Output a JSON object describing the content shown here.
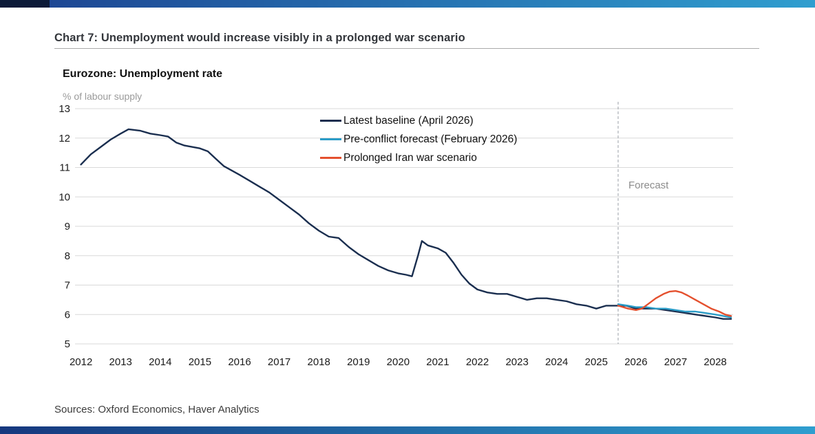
{
  "page": {
    "title": "Chart 7: Unemployment would increase visibly in a prolonged war scenario",
    "sources": "Sources: Oxford Economics, Haver Analytics"
  },
  "colors": {
    "baseline": "#1a2e4f",
    "preconflict": "#2b9cc7",
    "war_scenario": "#e4502e",
    "gridline": "#d9d9d9",
    "divider": "#9aa0a6",
    "accent_bar_dark": "#0c1a38",
    "accent_bar_start": "#1d4794",
    "accent_bar_end": "#2f9ecf"
  },
  "chart_data": {
    "type": "line",
    "title": "Eurozone: Unemployment rate",
    "ylabel": "% of labour supply",
    "xlabel": "",
    "ylim": [
      5,
      13
    ],
    "yticks": [
      5,
      6,
      7,
      8,
      9,
      10,
      11,
      12,
      13
    ],
    "xticks": [
      2012,
      2013,
      2014,
      2015,
      2016,
      2017,
      2018,
      2019,
      2020,
      2021,
      2022,
      2023,
      2024,
      2025,
      2026,
      2027,
      2028
    ],
    "xlim": [
      2011.85,
      2028.45
    ],
    "grid": "horizontal",
    "legend_position": "inside-top-center",
    "forecast_divider_x": 2025.55,
    "forecast_label": "Forecast",
    "series": [
      {
        "name": "Latest baseline (April 2026)",
        "color": "#1a2e4f",
        "points": [
          [
            2012.0,
            11.1
          ],
          [
            2012.25,
            11.45
          ],
          [
            2012.5,
            11.7
          ],
          [
            2012.75,
            11.95
          ],
          [
            2013.0,
            12.15
          ],
          [
            2013.2,
            12.3
          ],
          [
            2013.5,
            12.25
          ],
          [
            2013.75,
            12.15
          ],
          [
            2014.0,
            12.1
          ],
          [
            2014.2,
            12.05
          ],
          [
            2014.4,
            11.85
          ],
          [
            2014.6,
            11.75
          ],
          [
            2014.8,
            11.7
          ],
          [
            2015.0,
            11.65
          ],
          [
            2015.2,
            11.55
          ],
          [
            2015.4,
            11.3
          ],
          [
            2015.6,
            11.05
          ],
          [
            2015.8,
            10.9
          ],
          [
            2016.0,
            10.75
          ],
          [
            2016.25,
            10.55
          ],
          [
            2016.5,
            10.35
          ],
          [
            2016.75,
            10.15
          ],
          [
            2017.0,
            9.9
          ],
          [
            2017.25,
            9.65
          ],
          [
            2017.5,
            9.4
          ],
          [
            2017.75,
            9.1
          ],
          [
            2018.0,
            8.85
          ],
          [
            2018.25,
            8.65
          ],
          [
            2018.5,
            8.6
          ],
          [
            2018.75,
            8.3
          ],
          [
            2019.0,
            8.05
          ],
          [
            2019.25,
            7.85
          ],
          [
            2019.5,
            7.65
          ],
          [
            2019.75,
            7.5
          ],
          [
            2020.0,
            7.4
          ],
          [
            2020.2,
            7.35
          ],
          [
            2020.35,
            7.3
          ],
          [
            2020.5,
            8.0
          ],
          [
            2020.6,
            8.5
          ],
          [
            2020.75,
            8.35
          ],
          [
            2021.0,
            8.25
          ],
          [
            2021.2,
            8.1
          ],
          [
            2021.4,
            7.75
          ],
          [
            2021.6,
            7.35
          ],
          [
            2021.8,
            7.05
          ],
          [
            2022.0,
            6.85
          ],
          [
            2022.25,
            6.75
          ],
          [
            2022.5,
            6.7
          ],
          [
            2022.75,
            6.7
          ],
          [
            2023.0,
            6.6
          ],
          [
            2023.25,
            6.5
          ],
          [
            2023.5,
            6.55
          ],
          [
            2023.75,
            6.55
          ],
          [
            2024.0,
            6.5
          ],
          [
            2024.25,
            6.45
          ],
          [
            2024.5,
            6.35
          ],
          [
            2024.75,
            6.3
          ],
          [
            2025.0,
            6.2
          ],
          [
            2025.25,
            6.3
          ],
          [
            2025.55,
            6.3
          ],
          [
            2025.75,
            6.3
          ],
          [
            2026.0,
            6.2
          ],
          [
            2026.25,
            6.2
          ],
          [
            2026.5,
            6.2
          ],
          [
            2026.75,
            6.15
          ],
          [
            2027.0,
            6.1
          ],
          [
            2027.25,
            6.05
          ],
          [
            2027.5,
            6.0
          ],
          [
            2027.75,
            5.95
          ],
          [
            2028.0,
            5.9
          ],
          [
            2028.2,
            5.85
          ],
          [
            2028.4,
            5.85
          ]
        ]
      },
      {
        "name": "Pre-conflict forecast (February 2026)",
        "color": "#2b9cc7",
        "points": [
          [
            2025.55,
            6.35
          ],
          [
            2025.8,
            6.3
          ],
          [
            2026.0,
            6.25
          ],
          [
            2026.25,
            6.25
          ],
          [
            2026.5,
            6.2
          ],
          [
            2026.75,
            6.2
          ],
          [
            2027.0,
            6.15
          ],
          [
            2027.25,
            6.1
          ],
          [
            2027.5,
            6.1
          ],
          [
            2027.75,
            6.05
          ],
          [
            2028.0,
            6.0
          ],
          [
            2028.2,
            5.95
          ],
          [
            2028.4,
            5.9
          ]
        ]
      },
      {
        "name": "Prolonged Iran war scenario",
        "color": "#e4502e",
        "points": [
          [
            2025.55,
            6.3
          ],
          [
            2025.8,
            6.2
          ],
          [
            2026.0,
            6.15
          ],
          [
            2026.15,
            6.2
          ],
          [
            2026.3,
            6.35
          ],
          [
            2026.5,
            6.55
          ],
          [
            2026.7,
            6.7
          ],
          [
            2026.85,
            6.78
          ],
          [
            2027.0,
            6.8
          ],
          [
            2027.15,
            6.75
          ],
          [
            2027.3,
            6.65
          ],
          [
            2027.5,
            6.5
          ],
          [
            2027.7,
            6.35
          ],
          [
            2027.9,
            6.2
          ],
          [
            2028.1,
            6.1
          ],
          [
            2028.25,
            6.0
          ],
          [
            2028.4,
            5.95
          ]
        ]
      }
    ]
  }
}
